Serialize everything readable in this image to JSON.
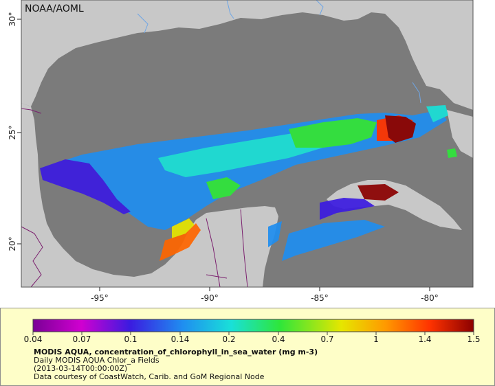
{
  "map": {
    "credit": "NOAA/AOML",
    "lon_ticks": [
      "-95°",
      "-90°",
      "-85°",
      "-80°"
    ],
    "lat_ticks": [
      "30°",
      "25°",
      "20°"
    ],
    "colors": {
      "ocean": "#7b7b7b",
      "land": "#c8c8c8",
      "frame": "#ffffff",
      "footer_bg": "#fefec8",
      "borders": "#7b1f6e",
      "rivers": "#6ea6e6"
    }
  },
  "colorbar": {
    "labels": [
      "0.04",
      "0.07",
      "0.1",
      "0.14",
      "0.2",
      "0.4",
      "0.7",
      "1",
      "1.4",
      "1.5"
    ],
    "colors": [
      "#7a0096",
      "#cc00cc",
      "#3b1be0",
      "#1f8ef0",
      "#19e0d8",
      "#2ee63a",
      "#e6e600",
      "#ff9900",
      "#ff3300",
      "#8b0000"
    ]
  },
  "info": {
    "variable": "MODIS AQUA, concentration_of_chlorophyll_in_sea_water (mg m-3)",
    "dataset": "Daily MODIS AQUA Chlor_a Fields",
    "time": "(2013-03-14T00:00:00Z)",
    "courtesy": "Data courtesy of CoastWatch, Carib. and GoM Regional Node"
  }
}
